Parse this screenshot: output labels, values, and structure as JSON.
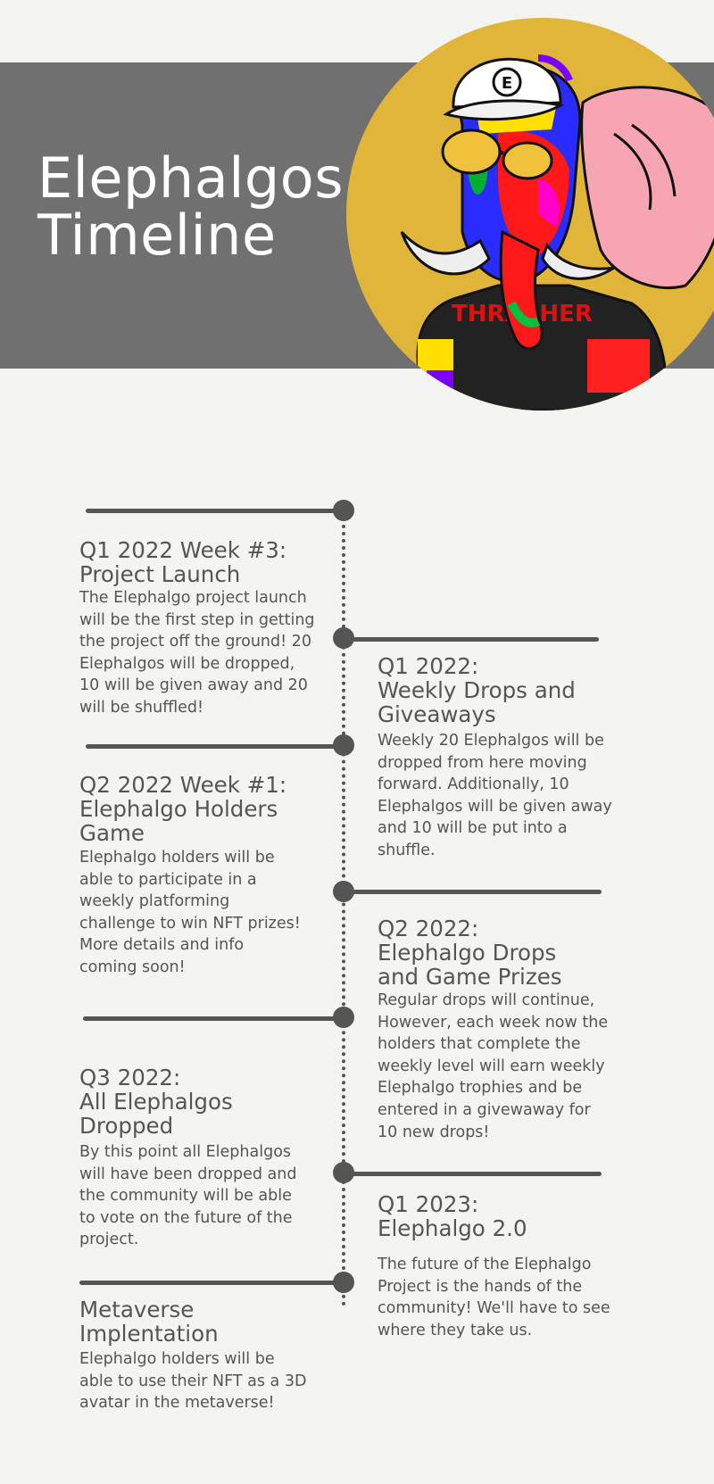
{
  "header": {
    "title_line1": "Elephalgos",
    "title_line2": "Timeline"
  },
  "colors": {
    "background": "#f4f4f0",
    "band": "#707070",
    "accent_circle": "#e0b53a",
    "timeline": "#555555",
    "text": "#555555"
  },
  "illustration": {
    "cap_letter": "E",
    "shirt_text": "THRASHER"
  },
  "timeline": [
    {
      "heading": "Q1 2022 Week #3:\nProject Launch",
      "body": "The Elephalgo project launch\nwill be the first step in getting\nthe project off the ground! 20\nElephalgos will be dropped,\n10 will be given away and 20\nwill be shuffled!"
    },
    {
      "heading": "Q1 2022:\nWeekly Drops and\nGiveaways",
      "body": "Weekly 20 Elephalgos will be\ndropped from here moving\nforward. Additionally, 10\nElephalgos will be given away\nand 10 will be put into a\nshuffle."
    },
    {
      "heading": "Q2 2022 Week #1:\nElephalgo Holders\nGame",
      "body": "Elephalgo holders will be\nable to participate in a\nweekly platforming\nchallenge to win NFT prizes!\nMore details and info\ncoming soon!"
    },
    {
      "heading": "Q2 2022:\nElephalgo Drops\nand Game Prizes",
      "body": "Regular drops will continue,\nHowever, each week now the\nholders that complete the\nweekly level will earn weekly\nElephalgo trophies and be\nentered in a givewaway for\n10 new drops!"
    },
    {
      "heading": "Q3 2022:\nAll Elephalgos\nDropped",
      "body": "By this point all Elephalgos\nwill have been dropped and\nthe community will be able\nto vote on the future of the\nproject."
    },
    {
      "heading": "Q1 2023:\n Elephalgo 2.0",
      "body": "The future of the Elephalgo\nProject is the hands of the\ncommunity! We'll have to see\nwhere they take us."
    },
    {
      "heading": "Metaverse\nImplentation",
      "body": "Elephalgo holders will be\nable to use their NFT as a 3D\navatar in the metaverse!"
    }
  ]
}
